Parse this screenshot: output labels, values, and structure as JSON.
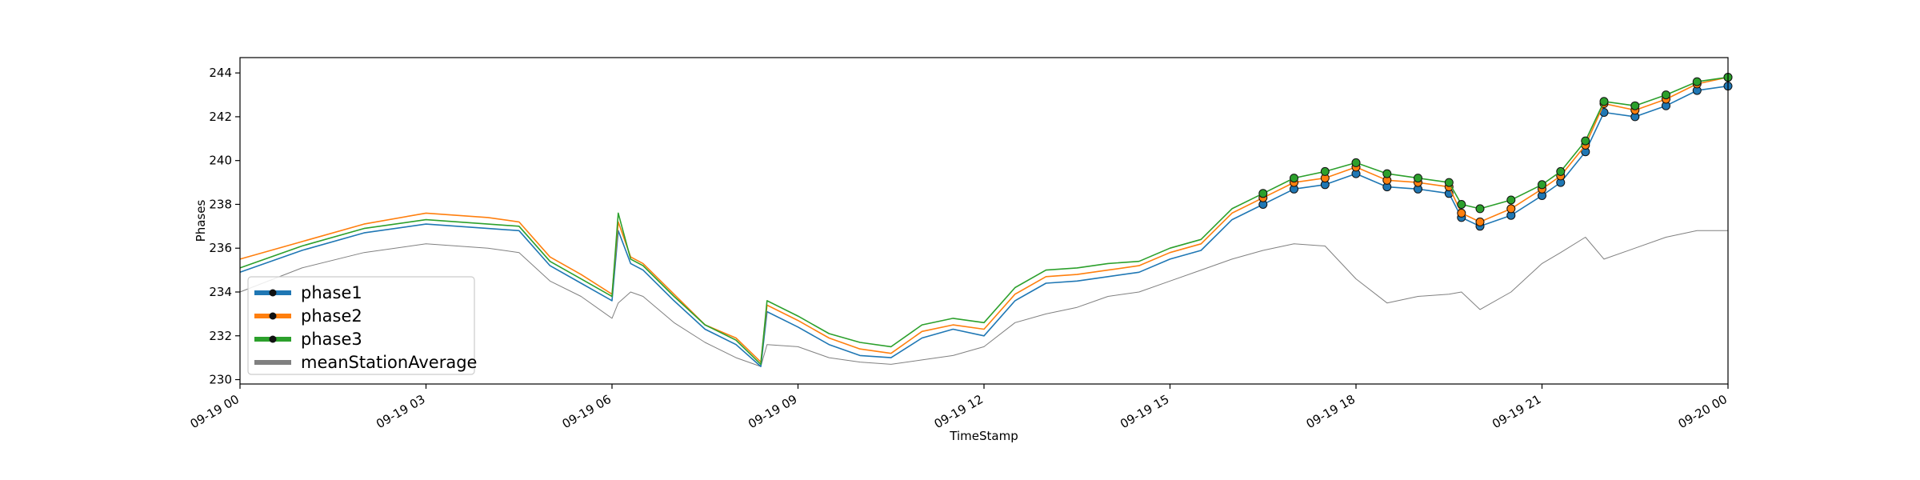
{
  "chart_data": {
    "type": "line",
    "title": "",
    "xlabel": "TimeStamp",
    "ylabel": "Phases",
    "xlim": [
      "2019-09-19 00:00",
      "2019-09-20 00:00"
    ],
    "ylim": [
      229.8,
      244.7
    ],
    "x_ticks": [
      "09-19 00",
      "09-19 03",
      "09-19 06",
      "09-19 09",
      "09-19 12",
      "09-19 15",
      "09-19 18",
      "09-19 21",
      "09-20 00"
    ],
    "y_ticks": [
      "230",
      "232",
      "234",
      "236",
      "238",
      "240",
      "242",
      "244"
    ],
    "grid": false,
    "legend_position": "lower-left",
    "x_hours": [
      0,
      1,
      2,
      3,
      4,
      4.5,
      5,
      5.5,
      6,
      6.1,
      6.3,
      6.5,
      7,
      7.5,
      8,
      8.4,
      8.5,
      9,
      9.5,
      10,
      10.5,
      11,
      11.5,
      12,
      12.5,
      13,
      13.5,
      14,
      14.5,
      15,
      15.5,
      16,
      16.5,
      17,
      17.5,
      18,
      18.5,
      19,
      19.5,
      19.7,
      20,
      20.5,
      21,
      21.3,
      21.7,
      22,
      22.5,
      23,
      23.5,
      24
    ],
    "series": [
      {
        "name": "phase1",
        "color": "#1f77b4",
        "values": [
          234.9,
          235.9,
          236.7,
          237.1,
          236.9,
          236.8,
          235.2,
          234.4,
          233.6,
          236.8,
          235.3,
          235.0,
          233.6,
          232.3,
          231.6,
          230.6,
          233.1,
          232.4,
          231.6,
          231.1,
          231.0,
          231.9,
          232.3,
          232.0,
          233.6,
          234.4,
          234.5,
          234.7,
          234.9,
          235.5,
          235.9,
          237.3,
          238.0,
          238.7,
          238.9,
          239.4,
          238.8,
          238.7,
          238.5,
          237.4,
          237.0,
          237.5,
          238.4,
          239.0,
          240.4,
          242.2,
          242.0,
          242.5,
          243.2,
          243.4
        ]
      },
      {
        "name": "phase2",
        "color": "#ff7f0e",
        "values": [
          235.5,
          236.3,
          237.1,
          237.6,
          237.4,
          237.2,
          235.6,
          234.8,
          233.9,
          237.2,
          235.6,
          235.3,
          233.9,
          232.5,
          231.9,
          230.8,
          233.4,
          232.7,
          231.9,
          231.4,
          231.2,
          232.2,
          232.5,
          232.3,
          233.9,
          234.7,
          234.8,
          235.0,
          235.2,
          235.8,
          236.2,
          237.6,
          238.3,
          239.0,
          239.2,
          239.7,
          239.1,
          239.0,
          238.8,
          237.6,
          237.2,
          237.8,
          238.7,
          239.3,
          240.7,
          242.6,
          242.3,
          242.8,
          243.5,
          243.8
        ]
      },
      {
        "name": "phase3",
        "color": "#2ca02c",
        "values": [
          235.1,
          236.1,
          236.9,
          237.3,
          237.1,
          237.0,
          235.4,
          234.6,
          233.8,
          237.6,
          235.5,
          235.2,
          233.8,
          232.5,
          231.8,
          230.7,
          233.6,
          232.9,
          232.1,
          231.7,
          231.5,
          232.5,
          232.8,
          232.6,
          234.2,
          235.0,
          235.1,
          235.3,
          235.4,
          236.0,
          236.4,
          237.8,
          238.5,
          239.2,
          239.5,
          239.9,
          239.4,
          239.2,
          239.0,
          238.0,
          237.8,
          238.2,
          238.9,
          239.5,
          240.9,
          242.7,
          242.5,
          243.0,
          243.6,
          243.8
        ]
      },
      {
        "name": "meanStationAverage",
        "color": "#808080",
        "values": [
          234.0,
          235.1,
          235.8,
          236.2,
          236.0,
          235.8,
          234.5,
          233.8,
          232.8,
          233.5,
          234.0,
          233.8,
          232.6,
          231.7,
          231.0,
          230.6,
          231.6,
          231.5,
          231.0,
          230.8,
          230.7,
          230.9,
          231.1,
          231.5,
          232.6,
          233.0,
          233.3,
          233.8,
          234.0,
          234.5,
          235.0,
          235.5,
          235.9,
          236.2,
          236.1,
          234.6,
          233.5,
          233.8,
          233.9,
          234.0,
          233.2,
          234.0,
          235.3,
          235.8,
          236.5,
          235.5,
          236.0,
          236.5,
          236.8,
          236.8
        ]
      }
    ]
  }
}
